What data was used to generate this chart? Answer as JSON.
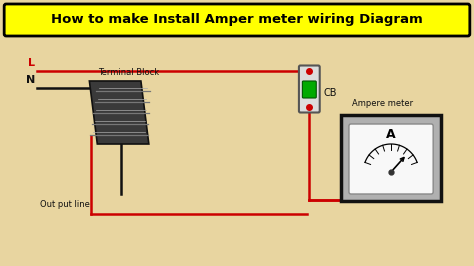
{
  "title": "How to make Install Amper meter wiring Diagram",
  "bg_color": "#e8d5a0",
  "title_bg": "#ffff00",
  "title_color": "#000000",
  "wire_red": "#cc0000",
  "wire_black": "#111111",
  "fig_w": 4.74,
  "fig_h": 2.66,
  "dpi": 100,
  "L_label": "L",
  "N_label": "N",
  "tb_label": "Terminal Block",
  "cb_label": "CB",
  "out_label": "Out put line",
  "am_label": "Ampere meter",
  "am_inner_label": "A"
}
